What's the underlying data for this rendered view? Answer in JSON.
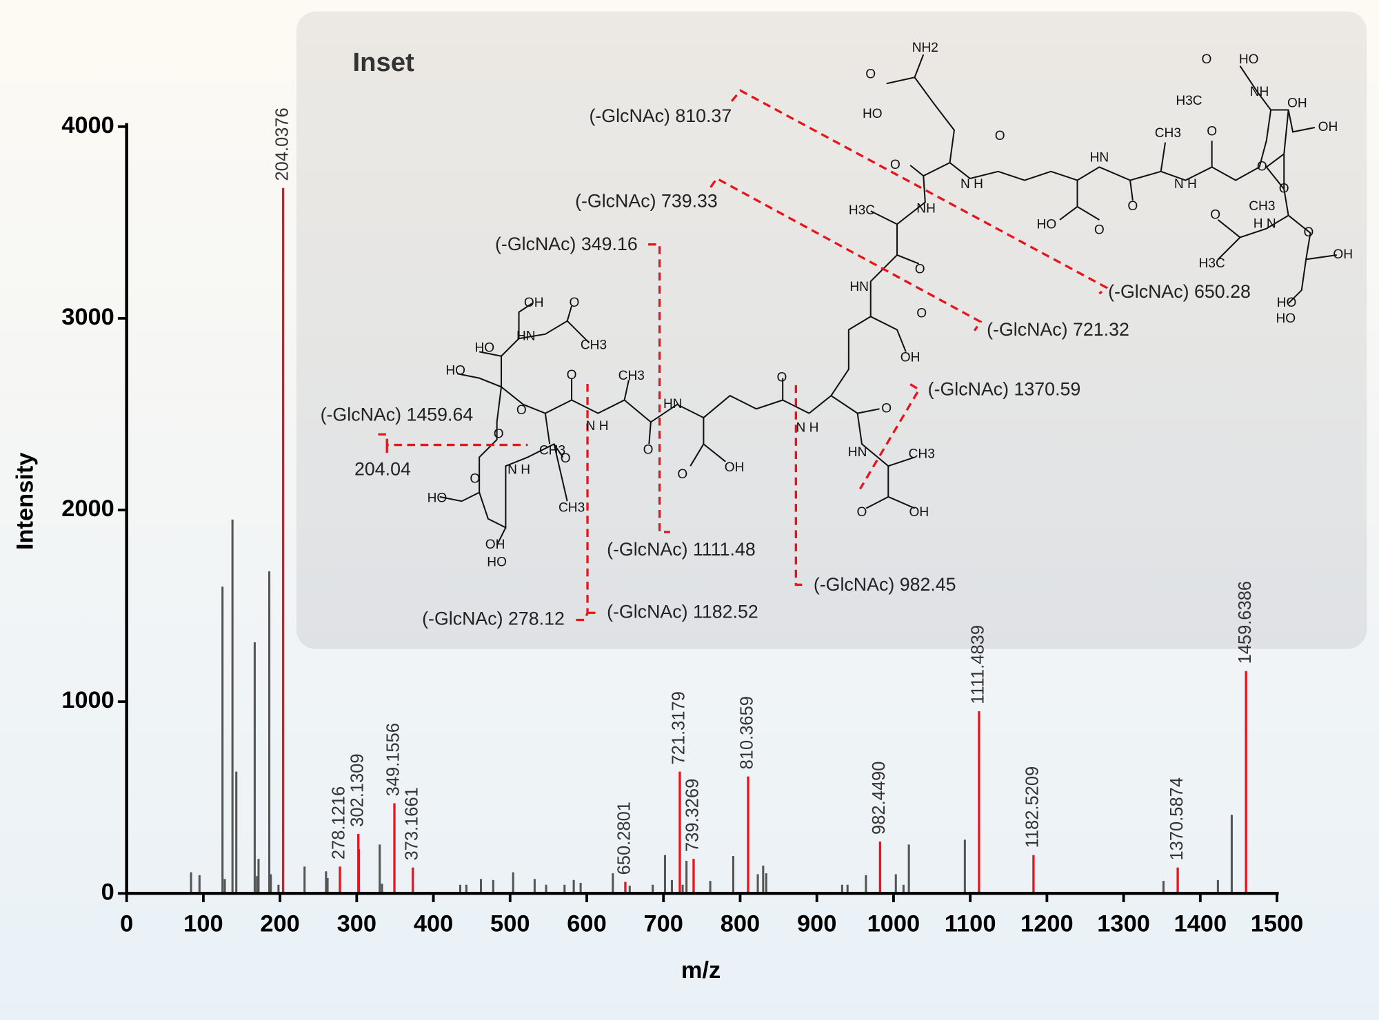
{
  "chart_data": {
    "type": "bar",
    "xlabel": "m/z",
    "ylabel": "Intensity",
    "xlim": [
      0,
      1500
    ],
    "xticks": [
      0,
      100,
      200,
      300,
      400,
      500,
      600,
      700,
      800,
      900,
      1000,
      1100,
      1200,
      1300,
      1400,
      1500
    ],
    "ylim": [
      0,
      4000
    ],
    "yticks": [
      0,
      1000,
      2000,
      3000,
      4000
    ],
    "series": [
      {
        "color": "#555555",
        "x": [
          84,
          95,
          125,
          128,
          138,
          143,
          167,
          170,
          172,
          186,
          188,
          198,
          232,
          260,
          262,
          303,
          330,
          333,
          435,
          443,
          462,
          478,
          504,
          532,
          547,
          571,
          583,
          592,
          634,
          656,
          686,
          702,
          711,
          725,
          730,
          761,
          791,
          823,
          830,
          834,
          933,
          940,
          964,
          1003,
          1013,
          1020,
          1093,
          1352,
          1423,
          1441
        ],
        "values": [
          110,
          95,
          1600,
          75,
          1950,
          635,
          1310,
          90,
          180,
          1680,
          100,
          45,
          140,
          115,
          80,
          230,
          255,
          50,
          45,
          45,
          75,
          70,
          110,
          75,
          45,
          45,
          70,
          55,
          105,
          40,
          45,
          200,
          70,
          45,
          170,
          65,
          195,
          100,
          145,
          105,
          45,
          45,
          95,
          100,
          45,
          255,
          280,
          65,
          70,
          410
        ]
      },
      {
        "color": "#e8141c",
        "x": [
          204.0376,
          278.1216,
          302.1309,
          349.1556,
          373.1661,
          650.2801,
          721.3179,
          739.3269,
          810.3659,
          982.449,
          1111.4839,
          1182.5209,
          1370.5874,
          1459.6386
        ],
        "labels": [
          "204.0376",
          "278.1216",
          "302.1309",
          "349.1556",
          "373.1661",
          "650.2801",
          "721.3179",
          "739.3269",
          "810.3659",
          "982.4490",
          "1111.4839",
          "1182.5209",
          "1370.5874",
          "1459.6386"
        ],
        "values": [
          3680,
          140,
          310,
          470,
          135,
          60,
          635,
          180,
          610,
          270,
          950,
          200,
          135,
          1160
        ]
      }
    ]
  },
  "inset": {
    "title": "Inset",
    "fragments": [
      "(-GlcNAc) 810.37",
      "(-GlcNAc) 739.33",
      "(-GlcNAc) 349.16",
      "(-GlcNAc) 1459.64",
      "204.04",
      "(-GlcNAc) 278.12",
      "(-GlcNAc) 1182.52",
      "(-GlcNAc) 1111.48",
      "(-GlcNAc) 982.45",
      "(-GlcNAc) 1370.59",
      "(-GlcNAc) 721.32",
      "(-GlcNAc) 650.28"
    ],
    "atoms": [
      "NH2",
      "O",
      "HO",
      "O",
      "N H",
      "O",
      "HN",
      "O",
      "HO",
      "O",
      "CH3",
      "N H",
      "O",
      "CH3",
      "O",
      "O",
      "HO",
      "H3C",
      "NH",
      "OH",
      "OH",
      "O",
      "O",
      "H N",
      "H3C",
      "O",
      "OH",
      "HO",
      "HO",
      "H3C",
      "NH",
      "O",
      "HN",
      "O",
      "OH",
      "O",
      "HN",
      "CH3",
      "O",
      "OH",
      "OH",
      "HN",
      "O",
      "CH3",
      "HO",
      "HO",
      "O",
      "CH3",
      "O",
      "N H",
      "HN",
      "O",
      "O",
      "N H",
      "O",
      "OH",
      "O",
      "CH3",
      "O",
      "N H",
      "O",
      "HO",
      "CH3",
      "OH",
      "HO"
    ]
  }
}
